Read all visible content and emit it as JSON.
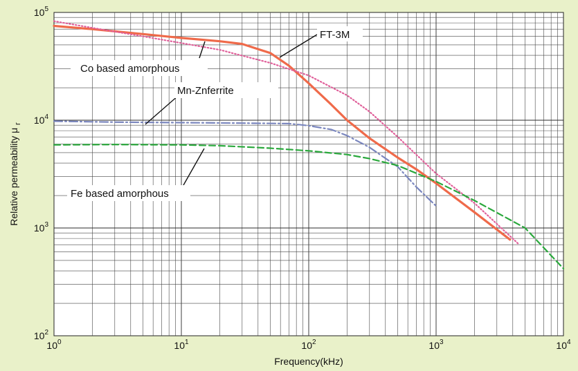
{
  "chart_data": {
    "type": "line",
    "xlabel": "Frequency(kHz)",
    "ylabel": "Relative permeability μ",
    "ylabel_sub": "r",
    "xscale": "log",
    "yscale": "log",
    "xlim": [
      1,
      10000
    ],
    "ylim": [
      100,
      100000
    ],
    "grid": true,
    "x_ticks": [
      {
        "base": "10",
        "exp": "0",
        "value": 1
      },
      {
        "base": "10",
        "exp": "1",
        "value": 10
      },
      {
        "base": "10",
        "exp": "2",
        "value": 100
      },
      {
        "base": "10",
        "exp": "3",
        "value": 1000
      },
      {
        "base": "10",
        "exp": "4",
        "value": 10000
      }
    ],
    "y_ticks": [
      {
        "base": "10",
        "exp": "2",
        "value": 100
      },
      {
        "base": "10",
        "exp": "3",
        "value": 1000
      },
      {
        "base": "10",
        "exp": "4",
        "value": 10000
      },
      {
        "base": "10",
        "exp": "5",
        "value": 100000
      }
    ],
    "series": [
      {
        "name": "FT-3M",
        "color": "#ef6a4a",
        "style": "solid",
        "points": [
          [
            1,
            75000
          ],
          [
            2,
            70000
          ],
          [
            5,
            63000
          ],
          [
            10,
            58000
          ],
          [
            20,
            54000
          ],
          [
            30,
            51000
          ],
          [
            50,
            42000
          ],
          [
            70,
            32000
          ],
          [
            100,
            22000
          ],
          [
            150,
            14000
          ],
          [
            200,
            10000
          ],
          [
            300,
            6800
          ],
          [
            500,
            4500
          ],
          [
            700,
            3500
          ],
          [
            1000,
            2600
          ],
          [
            2000,
            1400
          ],
          [
            3800,
            780
          ]
        ]
      },
      {
        "name": "Co based amorphous",
        "color": "#e0609a",
        "style": "dotted",
        "points": [
          [
            1,
            83000
          ],
          [
            2,
            72000
          ],
          [
            5,
            60000
          ],
          [
            10,
            52000
          ],
          [
            20,
            45000
          ],
          [
            50,
            34000
          ],
          [
            100,
            26000
          ],
          [
            200,
            17000
          ],
          [
            300,
            12000
          ],
          [
            500,
            7000
          ],
          [
            1000,
            3200
          ],
          [
            2000,
            1700
          ],
          [
            4500,
            700
          ]
        ]
      },
      {
        "name": "Mn-Znferrite",
        "color": "#7a86be",
        "style": "dashdot",
        "points": [
          [
            1,
            9800
          ],
          [
            3,
            9600
          ],
          [
            10,
            9500
          ],
          [
            30,
            9400
          ],
          [
            70,
            9300
          ],
          [
            100,
            8900
          ],
          [
            150,
            8200
          ],
          [
            200,
            7200
          ],
          [
            300,
            5600
          ],
          [
            500,
            3700
          ],
          [
            700,
            2400
          ],
          [
            1000,
            1600
          ]
        ]
      },
      {
        "name": "Fe based amorphous",
        "color": "#2aa83c",
        "style": "dashed",
        "points": [
          [
            1,
            5900
          ],
          [
            3,
            5950
          ],
          [
            10,
            5900
          ],
          [
            20,
            5800
          ],
          [
            50,
            5500
          ],
          [
            100,
            5200
          ],
          [
            200,
            4800
          ],
          [
            300,
            4400
          ],
          [
            500,
            3800
          ],
          [
            1000,
            2700
          ],
          [
            2000,
            1800
          ],
          [
            5000,
            1000
          ],
          [
            10000,
            420
          ]
        ]
      }
    ],
    "annotations": [
      {
        "text": "FT-3M",
        "series": "FT-3M"
      },
      {
        "text": "Co based amorphous",
        "series": "Co based amorphous"
      },
      {
        "text": "Mn-Znferrite",
        "series": "Mn-Znferrite"
      },
      {
        "text": "Fe based amorphous",
        "series": "Fe based amorphous"
      }
    ]
  }
}
